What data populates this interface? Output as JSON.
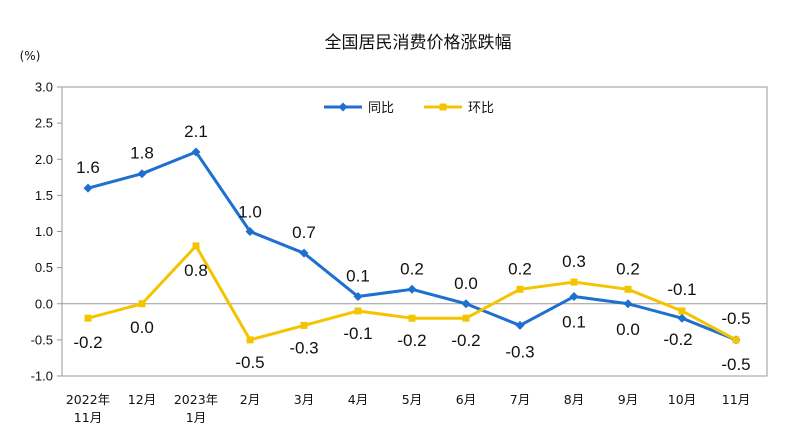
{
  "chart_data": {
    "type": "line",
    "title": "全国居民消费价格涨跌幅",
    "unit": "(%)",
    "x_categories": [
      [
        "2022年",
        "11月"
      ],
      [
        "12月"
      ],
      [
        "2023年",
        "1月"
      ],
      [
        "2月"
      ],
      [
        "3月"
      ],
      [
        "4月"
      ],
      [
        "5月"
      ],
      [
        "6月"
      ],
      [
        "7月"
      ],
      [
        "8月"
      ],
      [
        "9月"
      ],
      [
        "10月"
      ],
      [
        "11月"
      ]
    ],
    "y_ticks": [
      "3.0",
      "2.5",
      "2.0",
      "1.5",
      "1.0",
      "0.5",
      "0.0",
      "-0.5",
      "-1.0"
    ],
    "ylim": [
      -1.0,
      3.0
    ],
    "grid": false,
    "legend_position": "top-center",
    "series": [
      {
        "name": "同比",
        "color": "#1f6fd1",
        "marker": "diamond",
        "values": [
          1.6,
          1.8,
          2.1,
          1.0,
          0.7,
          0.1,
          0.2,
          0.0,
          -0.3,
          0.1,
          0.0,
          -0.2,
          -0.5
        ],
        "labels": [
          "1.6",
          "1.8",
          "2.1",
          "1.0",
          "0.7",
          "0.1",
          "0.2",
          "0.0",
          "-0.3",
          "0.1",
          "0.0",
          "-0.2",
          "-0.5"
        ]
      },
      {
        "name": "环比",
        "color": "#f5c400",
        "marker": "square",
        "values": [
          -0.2,
          0.0,
          0.8,
          -0.5,
          -0.3,
          -0.1,
          -0.2,
          -0.2,
          0.2,
          0.3,
          0.2,
          -0.1,
          -0.5
        ],
        "labels": [
          "-0.2",
          "0.0",
          "0.8",
          "-0.5",
          "-0.3",
          "-0.1",
          "-0.2",
          "-0.2",
          "0.2",
          "0.3",
          "0.2",
          "-0.1",
          "-0.5"
        ]
      }
    ]
  }
}
